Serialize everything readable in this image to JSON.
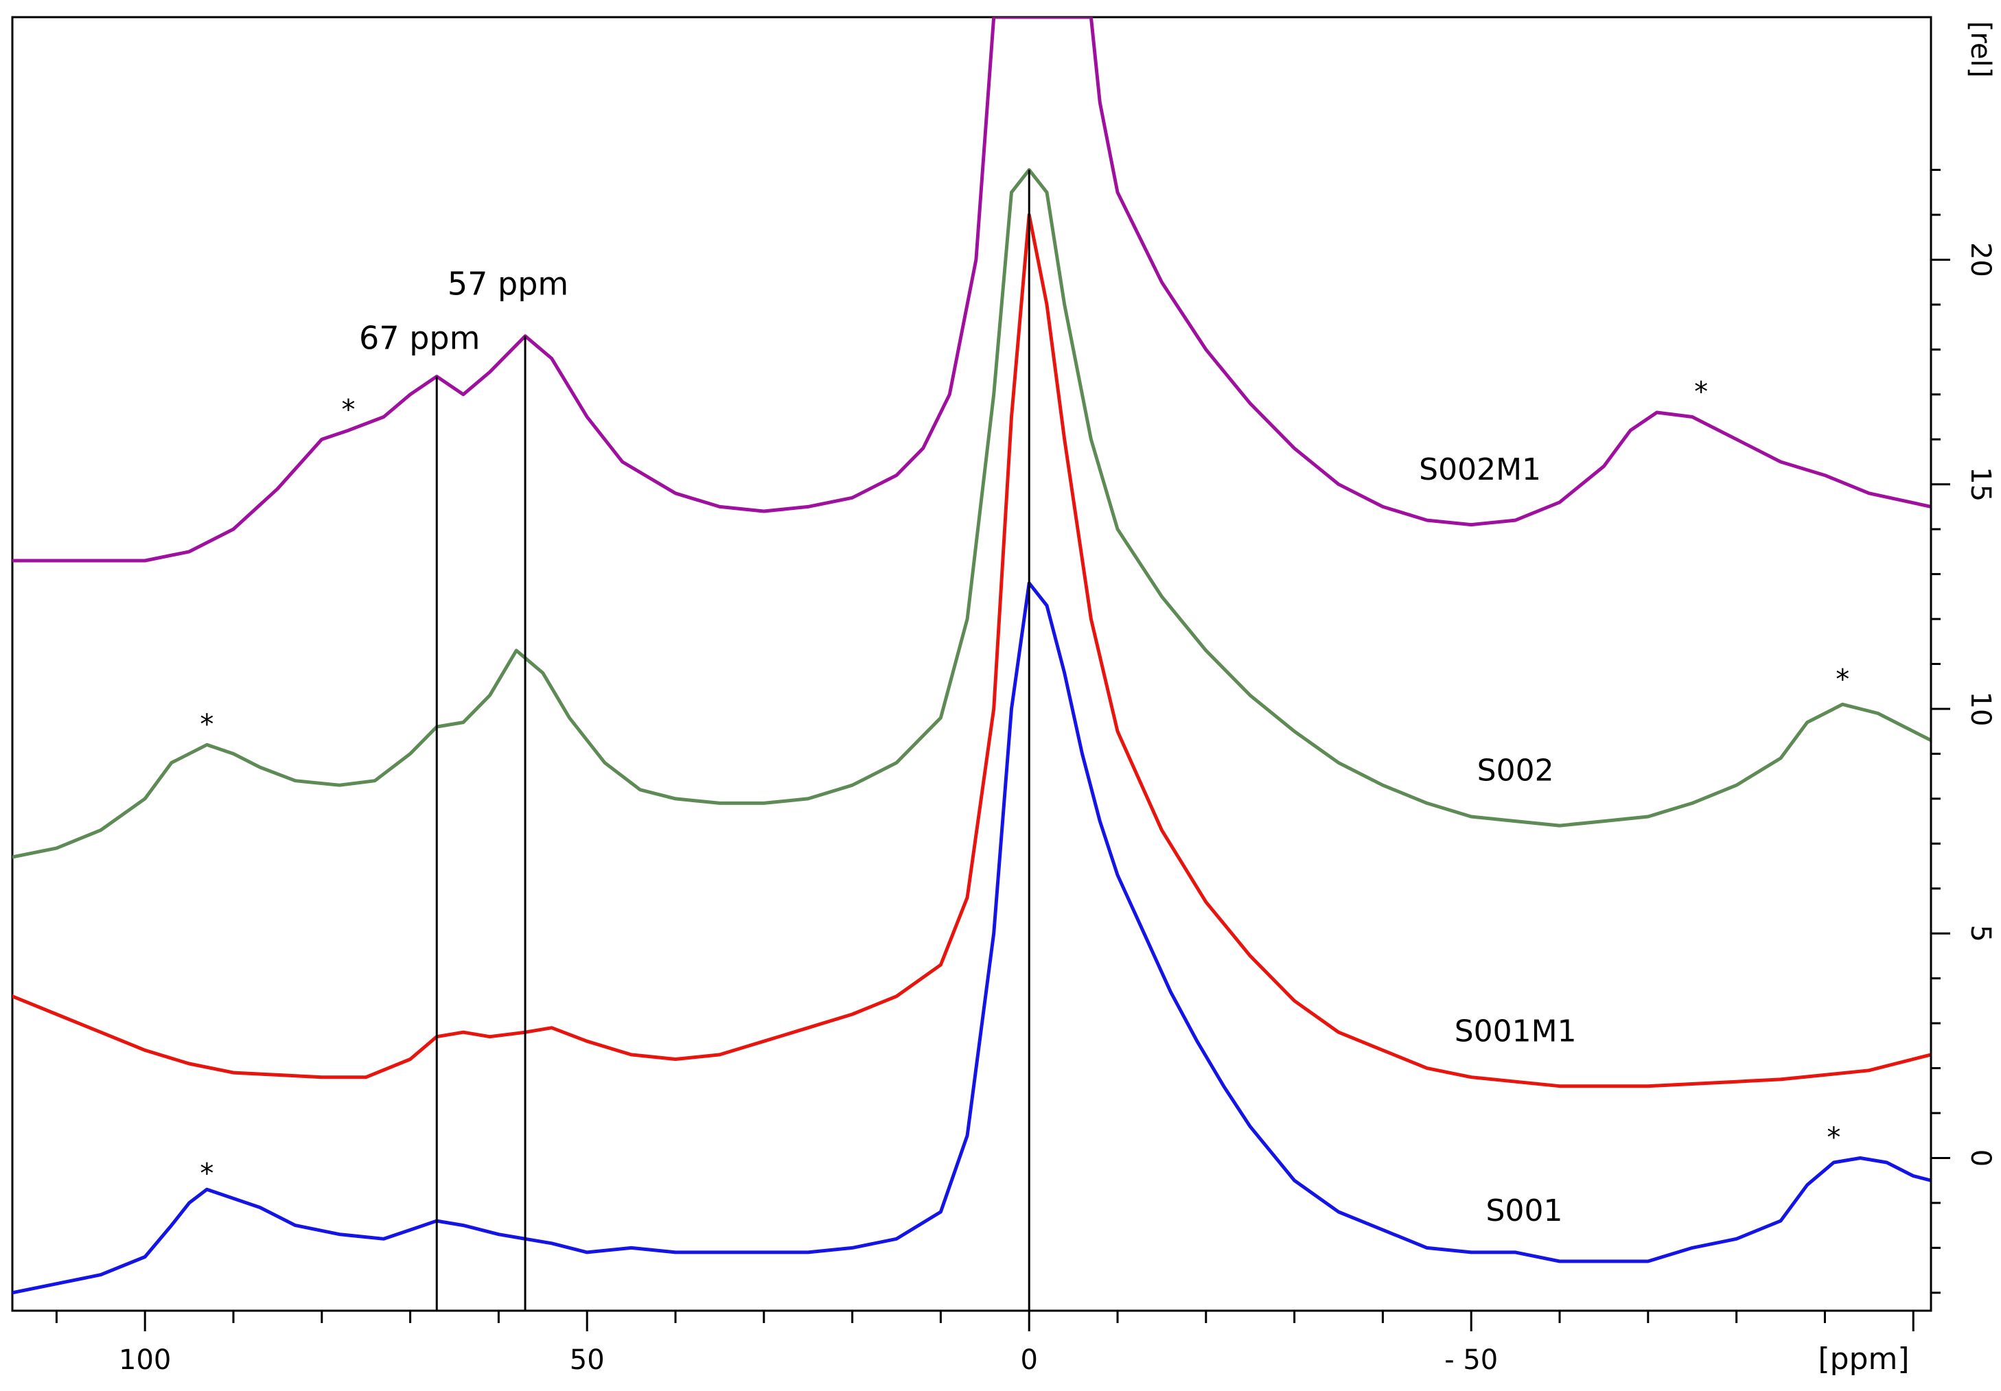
{
  "chart_data": {
    "type": "line",
    "title": "",
    "xlabel": "[ppm]",
    "ylabel": "[rel]",
    "xlim": [
      115,
      -102
    ],
    "ylim": [
      -3.4,
      25.4
    ],
    "x_ticks": [
      {
        "value": 100,
        "label": "100"
      },
      {
        "value": 50,
        "label": "50"
      },
      {
        "value": 0,
        "label": "0"
      },
      {
        "value": -50,
        "label": "- 50"
      }
    ],
    "y_ticks": [
      {
        "value": 0,
        "label": "0"
      },
      {
        "value": 5,
        "label": "5"
      },
      {
        "value": 10,
        "label": "10"
      },
      {
        "value": 15,
        "label": "15"
      },
      {
        "value": 20,
        "label": "20"
      }
    ],
    "series": [
      {
        "name": "S002M1",
        "color": "#a0109e",
        "points": [
          [
            115,
            13.3
          ],
          [
            105,
            13.3
          ],
          [
            100,
            13.3
          ],
          [
            95,
            13.5
          ],
          [
            90,
            14.0
          ],
          [
            85,
            14.9
          ],
          [
            80,
            16.0
          ],
          [
            77,
            16.2
          ],
          [
            73,
            16.5
          ],
          [
            70,
            17.0
          ],
          [
            67,
            17.4
          ],
          [
            64,
            17.0
          ],
          [
            61,
            17.5
          ],
          [
            57,
            18.3
          ],
          [
            54,
            17.8
          ],
          [
            50,
            16.5
          ],
          [
            46,
            15.5
          ],
          [
            40,
            14.8
          ],
          [
            35,
            14.5
          ],
          [
            30,
            14.4
          ],
          [
            25,
            14.5
          ],
          [
            20,
            14.7
          ],
          [
            15,
            15.2
          ],
          [
            12,
            15.8
          ],
          [
            9,
            17.0
          ],
          [
            6,
            20.0
          ],
          [
            4,
            25.4
          ],
          [
            -7,
            25.4
          ],
          [
            -8,
            23.5
          ],
          [
            -10,
            21.5
          ],
          [
            -15,
            19.5
          ],
          [
            -20,
            18.0
          ],
          [
            -25,
            16.8
          ],
          [
            -30,
            15.8
          ],
          [
            -35,
            15.0
          ],
          [
            -40,
            14.5
          ],
          [
            -45,
            14.2
          ],
          [
            -50,
            14.1
          ],
          [
            -55,
            14.2
          ],
          [
            -60,
            14.6
          ],
          [
            -65,
            15.4
          ],
          [
            -68,
            16.2
          ],
          [
            -71,
            16.6
          ],
          [
            -75,
            16.5
          ],
          [
            -80,
            16.0
          ],
          [
            -85,
            15.5
          ],
          [
            -90,
            15.2
          ],
          [
            -95,
            14.8
          ],
          [
            -102,
            14.5
          ]
        ]
      },
      {
        "name": "S002",
        "color": "#5e8a56",
        "points": [
          [
            115,
            6.7
          ],
          [
            110,
            6.9
          ],
          [
            105,
            7.3
          ],
          [
            100,
            8.0
          ],
          [
            97,
            8.8
          ],
          [
            93,
            9.2
          ],
          [
            90,
            9.0
          ],
          [
            87,
            8.7
          ],
          [
            83,
            8.4
          ],
          [
            78,
            8.3
          ],
          [
            74,
            8.4
          ],
          [
            70,
            9.0
          ],
          [
            67,
            9.6
          ],
          [
            64,
            9.7
          ],
          [
            61,
            10.3
          ],
          [
            58,
            11.3
          ],
          [
            55,
            10.8
          ],
          [
            52,
            9.8
          ],
          [
            48,
            8.8
          ],
          [
            44,
            8.2
          ],
          [
            40,
            8.0
          ],
          [
            35,
            7.9
          ],
          [
            30,
            7.9
          ],
          [
            25,
            8.0
          ],
          [
            20,
            8.3
          ],
          [
            15,
            8.8
          ],
          [
            10,
            9.8
          ],
          [
            7,
            12.0
          ],
          [
            4,
            17.0
          ],
          [
            2,
            21.5
          ],
          [
            0,
            22.0
          ],
          [
            -2,
            21.5
          ],
          [
            -4,
            19.0
          ],
          [
            -7,
            16.0
          ],
          [
            -10,
            14.0
          ],
          [
            -15,
            12.5
          ],
          [
            -20,
            11.3
          ],
          [
            -25,
            10.3
          ],
          [
            -30,
            9.5
          ],
          [
            -35,
            8.8
          ],
          [
            -40,
            8.3
          ],
          [
            -45,
            7.9
          ],
          [
            -50,
            7.6
          ],
          [
            -55,
            7.5
          ],
          [
            -60,
            7.4
          ],
          [
            -65,
            7.5
          ],
          [
            -70,
            7.6
          ],
          [
            -75,
            7.9
          ],
          [
            -80,
            8.3
          ],
          [
            -85,
            8.9
          ],
          [
            -88,
            9.7
          ],
          [
            -92,
            10.1
          ],
          [
            -96,
            9.9
          ],
          [
            -102,
            9.3
          ]
        ]
      },
      {
        "name": "S001M1",
        "color": "#e8140e",
        "points": [
          [
            115,
            3.6
          ],
          [
            110,
            3.2
          ],
          [
            105,
            2.8
          ],
          [
            100,
            2.4
          ],
          [
            95,
            2.1
          ],
          [
            90,
            1.9
          ],
          [
            85,
            1.85
          ],
          [
            80,
            1.8
          ],
          [
            75,
            1.8
          ],
          [
            70,
            2.2
          ],
          [
            67,
            2.7
          ],
          [
            64,
            2.8
          ],
          [
            61,
            2.7
          ],
          [
            57,
            2.8
          ],
          [
            54,
            2.9
          ],
          [
            50,
            2.6
          ],
          [
            45,
            2.3
          ],
          [
            40,
            2.2
          ],
          [
            35,
            2.3
          ],
          [
            30,
            2.6
          ],
          [
            25,
            2.9
          ],
          [
            20,
            3.2
          ],
          [
            15,
            3.6
          ],
          [
            10,
            4.3
          ],
          [
            7,
            5.8
          ],
          [
            4,
            10.0
          ],
          [
            2,
            16.5
          ],
          [
            0,
            21.0
          ],
          [
            -2,
            19.0
          ],
          [
            -4,
            16.0
          ],
          [
            -7,
            12.0
          ],
          [
            -10,
            9.5
          ],
          [
            -15,
            7.3
          ],
          [
            -20,
            5.7
          ],
          [
            -25,
            4.5
          ],
          [
            -30,
            3.5
          ],
          [
            -35,
            2.8
          ],
          [
            -40,
            2.4
          ],
          [
            -45,
            2.0
          ],
          [
            -50,
            1.8
          ],
          [
            -55,
            1.7
          ],
          [
            -60,
            1.6
          ],
          [
            -65,
            1.6
          ],
          [
            -70,
            1.6
          ],
          [
            -75,
            1.65
          ],
          [
            -80,
            1.7
          ],
          [
            -85,
            1.75
          ],
          [
            -90,
            1.85
          ],
          [
            -95,
            1.95
          ],
          [
            -102,
            2.3
          ]
        ]
      },
      {
        "name": "S001",
        "color": "#1414e6",
        "points": [
          [
            115,
            -3.0
          ],
          [
            110,
            -2.8
          ],
          [
            105,
            -2.6
          ],
          [
            100,
            -2.2
          ],
          [
            97,
            -1.5
          ],
          [
            95,
            -1.0
          ],
          [
            93,
            -0.7
          ],
          [
            90,
            -0.9
          ],
          [
            87,
            -1.1
          ],
          [
            83,
            -1.5
          ],
          [
            78,
            -1.7
          ],
          [
            73,
            -1.8
          ],
          [
            70,
            -1.6
          ],
          [
            67,
            -1.4
          ],
          [
            64,
            -1.5
          ],
          [
            60,
            -1.7
          ],
          [
            57,
            -1.8
          ],
          [
            54,
            -1.9
          ],
          [
            50,
            -2.1
          ],
          [
            45,
            -2.0
          ],
          [
            40,
            -2.1
          ],
          [
            35,
            -2.1
          ],
          [
            30,
            -2.1
          ],
          [
            25,
            -2.1
          ],
          [
            20,
            -2.0
          ],
          [
            15,
            -1.8
          ],
          [
            10,
            -1.2
          ],
          [
            7,
            0.5
          ],
          [
            4,
            5.0
          ],
          [
            2,
            10.0
          ],
          [
            0,
            12.8
          ],
          [
            -2,
            12.3
          ],
          [
            -4,
            10.8
          ],
          [
            -6,
            9.0
          ],
          [
            -8,
            7.5
          ],
          [
            -10,
            6.3
          ],
          [
            -13,
            5.0
          ],
          [
            -16,
            3.7
          ],
          [
            -19,
            2.6
          ],
          [
            -22,
            1.6
          ],
          [
            -25,
            0.7
          ],
          [
            -30,
            -0.5
          ],
          [
            -35,
            -1.2
          ],
          [
            -40,
            -1.6
          ],
          [
            -45,
            -2.0
          ],
          [
            -50,
            -2.1
          ],
          [
            -55,
            -2.1
          ],
          [
            -60,
            -2.3
          ],
          [
            -65,
            -2.3
          ],
          [
            -70,
            -2.3
          ],
          [
            -75,
            -2.0
          ],
          [
            -80,
            -1.8
          ],
          [
            -85,
            -1.4
          ],
          [
            -88,
            -0.6
          ],
          [
            -91,
            -0.1
          ],
          [
            -94,
            0.0
          ],
          [
            -97,
            -0.1
          ],
          [
            -100,
            -0.4
          ],
          [
            -102,
            -0.5
          ]
        ]
      }
    ],
    "vertical_markers": [
      {
        "x": 67,
        "label": "67 ppm"
      },
      {
        "x": 57,
        "label": "57 ppm"
      },
      {
        "x": 0,
        "label": ""
      }
    ],
    "annotations": [
      {
        "text": "S002M1",
        "x": -51,
        "y": 15.1
      },
      {
        "text": "S002",
        "x": -55,
        "y": 8.4
      },
      {
        "text": "S001M1",
        "x": -55,
        "y": 2.6
      },
      {
        "text": "S001",
        "x": -56,
        "y": -1.4
      },
      {
        "text": "*",
        "x": 77,
        "y": 16.3
      },
      {
        "text": "*",
        "x": 93,
        "y": 9.3
      },
      {
        "text": "*",
        "x": 93,
        "y": -0.7
      },
      {
        "text": "*",
        "x": -76,
        "y": 16.7
      },
      {
        "text": "*",
        "x": -92,
        "y": 10.3
      },
      {
        "text": "*",
        "x": -91,
        "y": 0.1
      }
    ]
  }
}
